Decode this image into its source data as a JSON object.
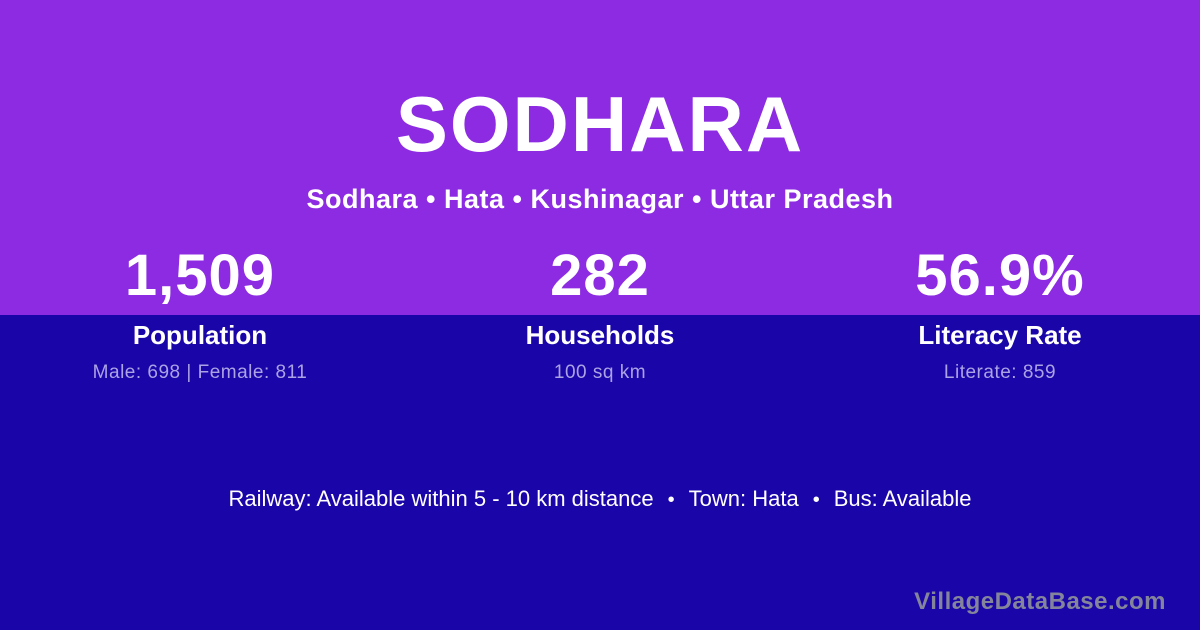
{
  "page": {
    "title": "SODHARA",
    "subtitle": "Sodhara • Hata • Kushinagar • Uttar Pradesh"
  },
  "stats": [
    {
      "value": "1,509",
      "label": "Population",
      "sublabel": "Male: 698 | Female: 811"
    },
    {
      "value": "282",
      "label": "Households",
      "sublabel": "100 sq km"
    },
    {
      "value": "56.9%",
      "label": "Literacy Rate",
      "sublabel": "Literate: 859"
    }
  ],
  "transport": {
    "railway": "Railway: Available within 5 - 10 km distance",
    "town": "Town: Hata",
    "bus": "Bus: Available",
    "separator": "•"
  },
  "watermark": "VillageDataBase.com",
  "colors": {
    "top_background": "#8C2BE2",
    "bottom_background": "#1A05A8",
    "primary_text": "#FFFFFF",
    "sublabel_text": "#ABA3E4",
    "watermark_text": "#84849B"
  }
}
